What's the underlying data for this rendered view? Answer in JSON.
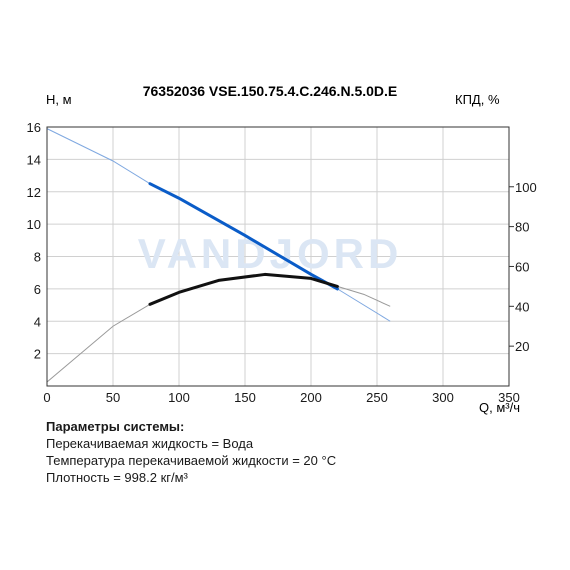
{
  "chart_data": {
    "type": "line",
    "title": "76352036 VSE.150.75.4.C.246.N.5.0D.E",
    "ylabel_left": "H, м",
    "ylabel_right": "КПД, %",
    "xlabel": "Q, м³/ч",
    "xlim": [
      0,
      350
    ],
    "ylim_left": [
      0,
      16
    ],
    "ylim_right": [
      0,
      130
    ],
    "xticks": [
      "0",
      "50",
      "100",
      "150",
      "200",
      "250",
      "300",
      "350"
    ],
    "yticks_left": [
      "2",
      "4",
      "6",
      "8",
      "10",
      "12",
      "14",
      "16"
    ],
    "yticks_right": [
      "20",
      "40",
      "60",
      "80",
      "100"
    ],
    "grid": true,
    "watermark": "VANDJORD",
    "series": [
      {
        "axis": "left",
        "color": "#0a5cc8",
        "x": [
          0,
          50,
          78,
          100,
          150,
          200,
          220,
          260
        ],
        "y": [
          15.9,
          13.9,
          12.5,
          11.6,
          9.3,
          6.9,
          6.0,
          4.0
        ],
        "highlight_range": [
          78,
          220
        ]
      },
      {
        "axis": "right",
        "color": "#111111",
        "x": [
          0,
          50,
          78,
          100,
          130,
          165,
          200,
          220,
          240,
          260
        ],
        "y": [
          2,
          30,
          41,
          47,
          53,
          56,
          54,
          50,
          46,
          40
        ],
        "highlight_range": [
          78,
          220
        ]
      }
    ]
  },
  "params": {
    "title": "Параметры системы:",
    "lines": [
      "Перекачиваемая жидкость = Вода",
      "Температура перекачиваемой жидкости = 20 °C",
      "Плотность = 998.2 кг/м³"
    ]
  }
}
